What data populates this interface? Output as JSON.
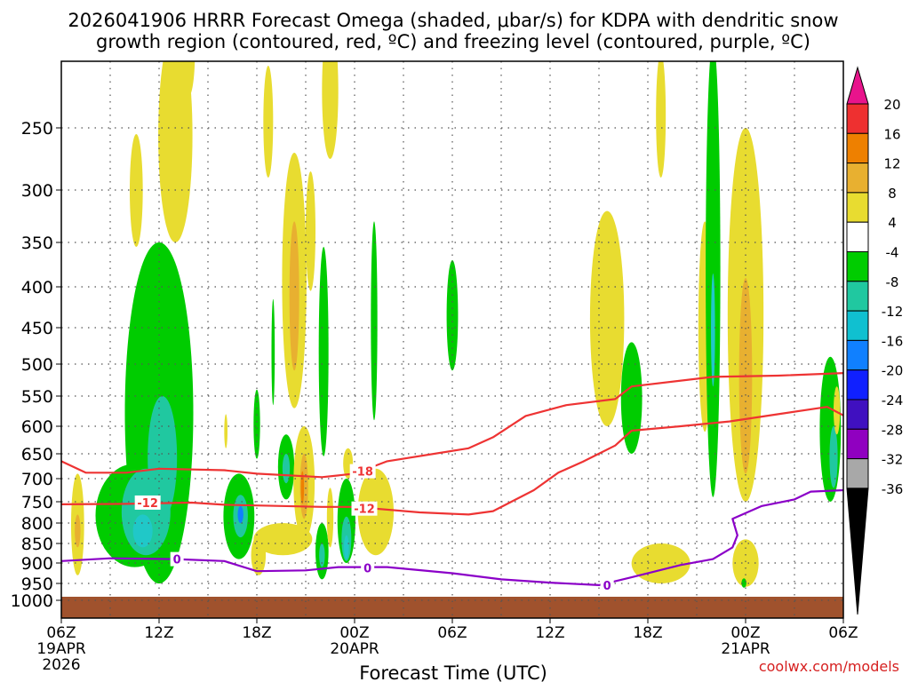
{
  "title": {
    "line1": "2026041906 HRRR Forecast Omega (shaded, μbar/s) for KDPA with dendritic snow",
    "line2": "growth region (contoured, red, ºC) and freezing level (contoured, purple, ºC)"
  },
  "xlabel": "Forecast Time (UTC)",
  "credit": "coolwx.com/models",
  "colors": {
    "ground": "#a0522d",
    "dendritic_contour": "#ee3333",
    "freezing_contour": "#8b00c8",
    "credit": "#d62020"
  },
  "chart_data": {
    "type": "heatmap",
    "y_axis": {
      "label": "",
      "ticks": [
        "250",
        "300",
        "350",
        "400",
        "450",
        "500",
        "550",
        "600",
        "650",
        "700",
        "750",
        "800",
        "850",
        "900",
        "950",
        "1000"
      ],
      "range": [
        1000,
        200
      ]
    },
    "x_axis": {
      "range_hours": [
        0,
        48
      ],
      "ticks": [
        {
          "h": 0,
          "label": "06Z",
          "sub": [
            "19APR",
            "2026"
          ]
        },
        {
          "h": 6,
          "label": "12Z",
          "sub": []
        },
        {
          "h": 12,
          "label": "18Z",
          "sub": []
        },
        {
          "h": 18,
          "label": "00Z",
          "sub": [
            "20APR"
          ]
        },
        {
          "h": 24,
          "label": "06Z",
          "sub": []
        },
        {
          "h": 30,
          "label": "12Z",
          "sub": []
        },
        {
          "h": 36,
          "label": "18Z",
          "sub": []
        },
        {
          "h": 42,
          "label": "00Z",
          "sub": [
            "21APR"
          ]
        },
        {
          "h": 48,
          "label": "06Z",
          "sub": []
        }
      ]
    },
    "colorbar": {
      "labels": [
        "20",
        "16",
        "12",
        "8",
        "4",
        "-4",
        "-8",
        "-12",
        "-16",
        "-20",
        "-24",
        "-28",
        "-32",
        "-36"
      ],
      "colors": [
        "#e8148c",
        "#ee3030",
        "#ee8000",
        "#e8b030",
        "#e8dc30",
        "#ffffff",
        "#00cc00",
        "#20c8a0",
        "#10c0d0",
        "#1080ff",
        "#1020ff",
        "#4010c0",
        "#9000c0",
        "#a8a8a8",
        "#000000"
      ]
    },
    "contours": [
      {
        "name": "dendritic_upper",
        "color": "#ee3333",
        "label": "-18",
        "points": [
          [
            0,
            665
          ],
          [
            1.5,
            688
          ],
          [
            4,
            688
          ],
          [
            6,
            680
          ],
          [
            10,
            683
          ],
          [
            12,
            690
          ],
          [
            16,
            697
          ],
          [
            18,
            690
          ],
          [
            20,
            665
          ],
          [
            25,
            640
          ],
          [
            26.5,
            620
          ],
          [
            28.5,
            583
          ],
          [
            31,
            565
          ],
          [
            34,
            555
          ],
          [
            35,
            535
          ],
          [
            40,
            520
          ],
          [
            44,
            518
          ],
          [
            48,
            514
          ]
        ]
      },
      {
        "name": "dendritic_lower",
        "color": "#ee3333",
        "label": "-12",
        "points": [
          [
            0,
            756
          ],
          [
            4,
            755
          ],
          [
            8,
            752
          ],
          [
            10,
            757
          ],
          [
            16,
            762
          ],
          [
            18,
            762
          ],
          [
            22,
            775
          ],
          [
            25,
            780
          ],
          [
            26.5,
            772
          ],
          [
            29,
            725
          ],
          [
            30.5,
            688
          ],
          [
            32,
            666
          ],
          [
            34,
            635
          ],
          [
            35,
            608
          ],
          [
            38,
            600
          ],
          [
            41,
            592
          ],
          [
            44,
            580
          ],
          [
            47,
            568
          ],
          [
            48,
            582
          ]
        ]
      },
      {
        "name": "freezing_level",
        "color": "#8b00c8",
        "label": "0",
        "points": [
          [
            0,
            895
          ],
          [
            3,
            888
          ],
          [
            7,
            890
          ],
          [
            10,
            895
          ],
          [
            12,
            920
          ],
          [
            15,
            918
          ],
          [
            17,
            910
          ],
          [
            20,
            910
          ],
          [
            24,
            925
          ],
          [
            27,
            940
          ],
          [
            30,
            948
          ],
          [
            33,
            955
          ],
          [
            35,
            935
          ],
          [
            38,
            905
          ],
          [
            40,
            890
          ],
          [
            41.2,
            860
          ],
          [
            41.5,
            830
          ],
          [
            41.2,
            790
          ],
          [
            43,
            760
          ],
          [
            45,
            745
          ],
          [
            46,
            728
          ],
          [
            48,
            725
          ]
        ]
      }
    ],
    "contour_labels": [
      {
        "text": "-18",
        "h": 18.5,
        "p": 685,
        "color": "#ee3333"
      },
      {
        "text": "-12",
        "h": 5.3,
        "p": 752,
        "color": "#ee3333"
      },
      {
        "text": "-12",
        "h": 18.6,
        "p": 766,
        "color": "#ee3333"
      },
      {
        "text": "0",
        "h": 7.1,
        "p": 890,
        "color": "#8b00c8"
      },
      {
        "text": "0",
        "h": 18.8,
        "p": 912,
        "color": "#8b00c8"
      },
      {
        "text": "0",
        "h": 33.5,
        "p": 955,
        "color": "#8b00c8"
      }
    ],
    "omega_cells": [
      {
        "h": 1.0,
        "p": 810,
        "w": 0.8,
        "dp": 240,
        "value": 4
      },
      {
        "h": 1.0,
        "p": 820,
        "w": 0.35,
        "dp": 80,
        "value": 8
      },
      {
        "h": 4.6,
        "p": 305,
        "w": 0.8,
        "dp": 100,
        "value": 4
      },
      {
        "h": 7.0,
        "p": 260,
        "w": 2.1,
        "dp": 180,
        "value": 4
      },
      {
        "h": 7.8,
        "p": 190,
        "w": 0.8,
        "dp": 70,
        "value": 4
      },
      {
        "h": 6.0,
        "p": 650,
        "w": 4.2,
        "dp": 600,
        "value": -4
      },
      {
        "h": 4.5,
        "p": 790,
        "w": 4.8,
        "dp": 240,
        "value": -4
      },
      {
        "h": 5.2,
        "p": 780,
        "w": 3.0,
        "dp": 200,
        "value": -8
      },
      {
        "h": 6.2,
        "p": 670,
        "w": 1.8,
        "dp": 240,
        "value": -8
      },
      {
        "h": 5.0,
        "p": 820,
        "w": 1.2,
        "dp": 80,
        "value": -12
      },
      {
        "h": 10.9,
        "p": 790,
        "w": 1.9,
        "dp": 200,
        "value": -4
      },
      {
        "h": 11.0,
        "p": 785,
        "w": 0.9,
        "dp": 100,
        "value": -8
      },
      {
        "h": 11.0,
        "p": 780,
        "w": 0.35,
        "dp": 40,
        "value": -16
      },
      {
        "h": 12.0,
        "p": 600,
        "w": 0.4,
        "dp": 120,
        "value": -4
      },
      {
        "h": 10.1,
        "p": 610,
        "w": 0.2,
        "dp": 60,
        "value": 4
      },
      {
        "h": 13.6,
        "p": 840,
        "w": 3.6,
        "dp": 80,
        "value": 4
      },
      {
        "h": 12.1,
        "p": 880,
        "w": 0.9,
        "dp": 100,
        "value": 4
      },
      {
        "h": 13.0,
        "p": 490,
        "w": 0.2,
        "dp": 150,
        "value": -4
      },
      {
        "h": 12.7,
        "p": 245,
        "w": 0.6,
        "dp": 90,
        "value": 4
      },
      {
        "h": 13.8,
        "p": 680,
        "w": 1.0,
        "dp": 130,
        "value": -4
      },
      {
        "h": 13.8,
        "p": 680,
        "w": 0.45,
        "dp": 60,
        "value": -8
      },
      {
        "h": 14.3,
        "p": 420,
        "w": 1.5,
        "dp": 300,
        "value": 4
      },
      {
        "h": 14.3,
        "p": 420,
        "w": 0.6,
        "dp": 180,
        "value": 8
      },
      {
        "h": 15.3,
        "p": 345,
        "w": 0.6,
        "dp": 120,
        "value": 4
      },
      {
        "h": 14.9,
        "p": 720,
        "w": 1.3,
        "dp": 240,
        "value": 4
      },
      {
        "h": 14.9,
        "p": 720,
        "w": 0.5,
        "dp": 140,
        "value": 8
      },
      {
        "h": 14.8,
        "p": 720,
        "w": 0.2,
        "dp": 70,
        "value": 12
      },
      {
        "h": 16.1,
        "p": 505,
        "w": 0.6,
        "dp": 300,
        "value": -4
      },
      {
        "h": 16.0,
        "p": 870,
        "w": 0.8,
        "dp": 140,
        "value": -4
      },
      {
        "h": 16.0,
        "p": 880,
        "w": 0.35,
        "dp": 60,
        "value": -8
      },
      {
        "h": 16.5,
        "p": 790,
        "w": 0.4,
        "dp": 140,
        "value": 4
      },
      {
        "h": 16.5,
        "p": 220,
        "w": 1.0,
        "dp": 110,
        "value": 4
      },
      {
        "h": 17.5,
        "p": 800,
        "w": 1.1,
        "dp": 200,
        "value": -4
      },
      {
        "h": 17.5,
        "p": 840,
        "w": 0.6,
        "dp": 110,
        "value": -8
      },
      {
        "h": 17.5,
        "p": 860,
        "w": 0.3,
        "dp": 60,
        "value": -12
      },
      {
        "h": 17.6,
        "p": 670,
        "w": 0.6,
        "dp": 60,
        "value": 4
      },
      {
        "h": 19.3,
        "p": 780,
        "w": 2.2,
        "dp": 200,
        "value": 4
      },
      {
        "h": 19.2,
        "p": 460,
        "w": 0.4,
        "dp": 260,
        "value": -4
      },
      {
        "h": 24.0,
        "p": 440,
        "w": 0.7,
        "dp": 140,
        "value": -4
      },
      {
        "h": 33.5,
        "p": 460,
        "w": 2.1,
        "dp": 280,
        "value": 4
      },
      {
        "h": 35.0,
        "p": 560,
        "w": 1.3,
        "dp": 180,
        "value": -4
      },
      {
        "h": 36.8,
        "p": 900,
        "w": 3.6,
        "dp": 100,
        "value": 4
      },
      {
        "h": 36.8,
        "p": 240,
        "w": 0.6,
        "dp": 100,
        "value": 4
      },
      {
        "h": 39.5,
        "p": 470,
        "w": 0.8,
        "dp": 280,
        "value": 4
      },
      {
        "h": 40.0,
        "p": 460,
        "w": 0.9,
        "dp": 560,
        "value": -4
      },
      {
        "h": 40.0,
        "p": 460,
        "w": 0.25,
        "dp": 150,
        "value": -12
      },
      {
        "h": 42.0,
        "p": 500,
        "w": 2.2,
        "dp": 500,
        "value": 4
      },
      {
        "h": 42.0,
        "p": 540,
        "w": 0.8,
        "dp": 300,
        "value": 8
      },
      {
        "h": 42.0,
        "p": 900,
        "w": 1.6,
        "dp": 120,
        "value": 4
      },
      {
        "h": 41.9,
        "p": 950,
        "w": 0.3,
        "dp": 25,
        "value": -4
      },
      {
        "h": 47.2,
        "p": 620,
        "w": 1.3,
        "dp": 260,
        "value": -4
      },
      {
        "h": 47.4,
        "p": 660,
        "w": 0.5,
        "dp": 120,
        "value": -8
      },
      {
        "h": 47.6,
        "p": 575,
        "w": 0.4,
        "dp": 80,
        "value": 4
      }
    ]
  }
}
